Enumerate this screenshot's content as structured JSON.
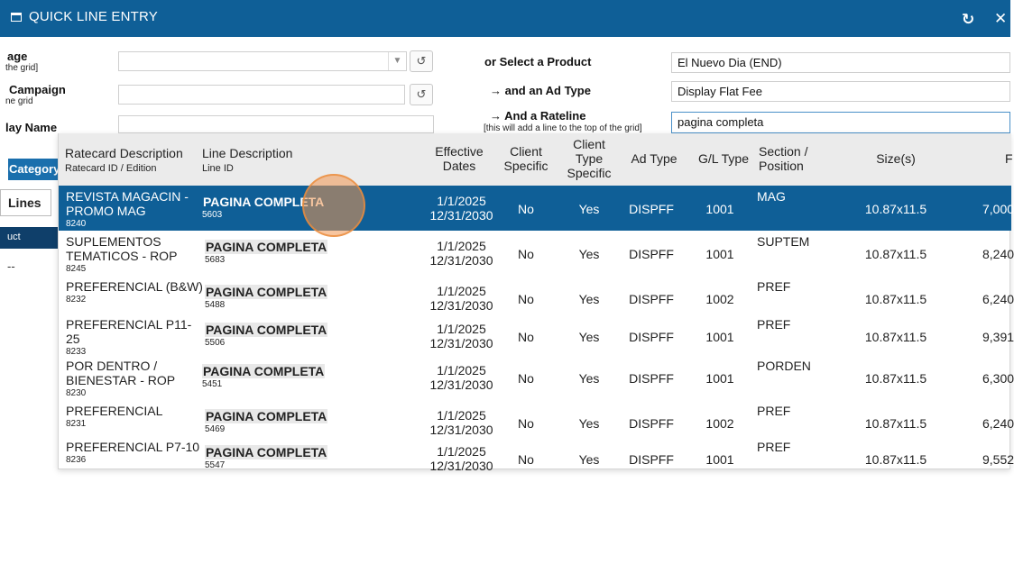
{
  "window": {
    "title": "QUICK LINE ENTRY",
    "refresh_icon": "refresh-icon",
    "close_icon": "close-icon"
  },
  "form": {
    "package_label": "age",
    "package_sub": "the grid]",
    "package_value": "",
    "campaign_label": "Campaign",
    "campaign_sub": "ne grid",
    "campaign_value": "",
    "display_name_label": "lay Name",
    "display_name_value": "",
    "product_label": "or Select a Product",
    "product_value": "El Nuevo Dia (END)",
    "adtype_label": "→ and an Ad Type",
    "adtype_value": "Display Flat Fee",
    "rateline_label": "→ And a Rateline",
    "rateline_sub": "[this will add a line to the top of the grid]",
    "rateline_value": "pagina completa"
  },
  "left_panel": {
    "category_label": "Category",
    "lines_label": "Lines",
    "product_tab": "uct",
    "dash": "--"
  },
  "grid": {
    "headers": {
      "ratecard": "Ratecard Description",
      "ratecard_sub": "Ratecard ID  /  Edition",
      "line": "Line Description",
      "line_sub": "Line ID",
      "effective_1": "Effective",
      "effective_2": "Dates",
      "client_1": "Client",
      "client_2": "Specific",
      "cts_1": "Client",
      "cts_2": "Type",
      "cts_3": "Specific",
      "adtype": "Ad Type",
      "gl": "G/L Type",
      "section_1": "Section /",
      "section_2": "Position",
      "size": "Size(s)",
      "price": "F"
    },
    "rows": [
      {
        "rc1": "REVISTA MAGACIN -",
        "rc2": "PROMO MAG",
        "rcid": "8240",
        "line": "PAGINA COMPLETA",
        "lineid": "5603",
        "d1": "1/1/2025",
        "d2": "12/31/2030",
        "client": "No",
        "cts": "Yes",
        "adtype": "DISPFF",
        "gl": "1001",
        "section": "MAG",
        "size": "10.87x11.5",
        "price": "7,000"
      },
      {
        "rc1": "SUPLEMENTOS",
        "rc2": "TEMATICOS - ROP",
        "rcid": "8245",
        "line": "PAGINA COMPLETA",
        "lineid": "5683",
        "d1": "1/1/2025",
        "d2": "12/31/2030",
        "client": "No",
        "cts": "Yes",
        "adtype": "DISPFF",
        "gl": "1001",
        "section": "SUPTEM",
        "size": "10.87x11.5",
        "price": "8,240"
      },
      {
        "rc1": "PREFERENCIAL (B&W)",
        "rc2": "",
        "rcid": "8232",
        "line": "PAGINA COMPLETA",
        "lineid": "5488",
        "d1": "1/1/2025",
        "d2": "12/31/2030",
        "client": "No",
        "cts": "Yes",
        "adtype": "DISPFF",
        "gl": "1002",
        "section": "PREF",
        "size": "10.87x11.5",
        "price": "6,240"
      },
      {
        "rc1": "PREFERENCIAL P11-",
        "rc2": "25",
        "rcid": "8233",
        "line": "PAGINA COMPLETA",
        "lineid": "5506",
        "d1": "1/1/2025",
        "d2": "12/31/2030",
        "client": "No",
        "cts": "Yes",
        "adtype": "DISPFF",
        "gl": "1001",
        "section": "PREF",
        "size": "10.87x11.5",
        "price": "9,391"
      },
      {
        "rc1": "POR DENTRO /",
        "rc2": "BIENESTAR - ROP",
        "rcid": "8230",
        "line": "PAGINA COMPLETA",
        "lineid": "5451",
        "d1": "1/1/2025",
        "d2": "12/31/2030",
        "client": "No",
        "cts": "Yes",
        "adtype": "DISPFF",
        "gl": "1001",
        "section": "PORDEN",
        "size": "10.87x11.5",
        "price": "6,300"
      },
      {
        "rc1": "PREFERENCIAL",
        "rc2": "",
        "rcid": "8231",
        "line": "PAGINA COMPLETA",
        "lineid": "5469",
        "d1": "1/1/2025",
        "d2": "12/31/2030",
        "client": "No",
        "cts": "Yes",
        "adtype": "DISPFF",
        "gl": "1002",
        "section": "PREF",
        "size": "10.87x11.5",
        "price": "6,240"
      },
      {
        "rc1": "PREFERENCIAL P7-10",
        "rc2": "",
        "rcid": "8236",
        "line": "PAGINA COMPLETA",
        "lineid": "5547",
        "d1": "1/1/2025",
        "d2": "12/31/2030",
        "client": "No",
        "cts": "Yes",
        "adtype": "DISPFF",
        "gl": "1001",
        "section": "PREF",
        "size": "10.87x11.5",
        "price": "9,552"
      }
    ]
  }
}
